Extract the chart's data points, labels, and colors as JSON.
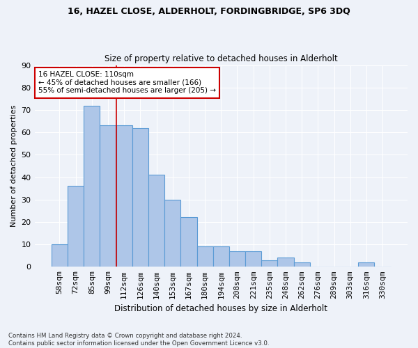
{
  "title1": "16, HAZEL CLOSE, ALDERHOLT, FORDINGBRIDGE, SP6 3DQ",
  "title2": "Size of property relative to detached houses in Alderholt",
  "xlabel": "Distribution of detached houses by size in Alderholt",
  "ylabel": "Number of detached properties",
  "categories": [
    "58sqm",
    "72sqm",
    "85sqm",
    "99sqm",
    "112sqm",
    "126sqm",
    "140sqm",
    "153sqm",
    "167sqm",
    "180sqm",
    "194sqm",
    "208sqm",
    "221sqm",
    "235sqm",
    "248sqm",
    "262sqm",
    "276sqm",
    "289sqm",
    "303sqm",
    "316sqm",
    "330sqm"
  ],
  "values": [
    10,
    36,
    72,
    63,
    63,
    62,
    41,
    30,
    22,
    9,
    9,
    7,
    7,
    3,
    4,
    2,
    0,
    0,
    0,
    2,
    0
  ],
  "bar_color": "#aec6e8",
  "bar_edge_color": "#5b9bd5",
  "bar_edge_width": 0.8,
  "vline_x_index": 3.5,
  "vline_color": "#cc0000",
  "annotation_text": "16 HAZEL CLOSE: 110sqm\n← 45% of detached houses are smaller (166)\n55% of semi-detached houses are larger (205) →",
  "annotation_box_color": "#ffffff",
  "annotation_box_edge": "#cc0000",
  "ylim": [
    0,
    90
  ],
  "yticks": [
    0,
    10,
    20,
    30,
    40,
    50,
    60,
    70,
    80,
    90
  ],
  "background_color": "#eef2f9",
  "grid_color": "#ffffff",
  "footnote": "Contains HM Land Registry data © Crown copyright and database right 2024.\nContains public sector information licensed under the Open Government Licence v3.0."
}
